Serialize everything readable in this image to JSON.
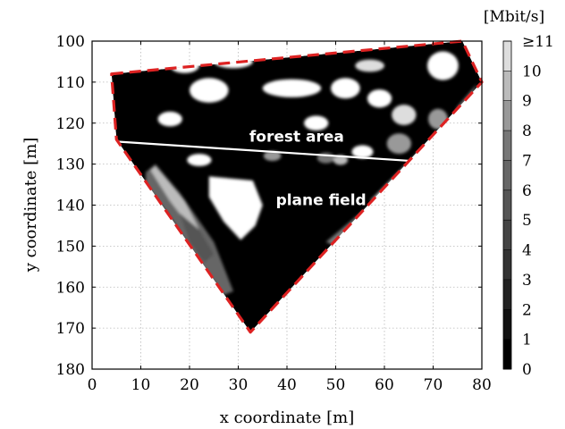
{
  "chart_data": {
    "type": "heatmap",
    "title": "",
    "xlabel": "x coordinate [m]",
    "ylabel": "y coordinate [m]",
    "xlim": [
      0,
      80
    ],
    "ylim": [
      100,
      180
    ],
    "y_inverted": true,
    "x_ticks": [
      0,
      10,
      20,
      30,
      40,
      50,
      60,
      70,
      80
    ],
    "y_ticks": [
      100,
      110,
      120,
      130,
      140,
      150,
      160,
      170,
      180
    ],
    "grid": true,
    "colorbar": {
      "unit_label": "[Mbit/s]",
      "min": 0,
      "max": 11,
      "tick_labels": [
        "0",
        "1",
        "2",
        "3",
        "4",
        "5",
        "6",
        "7",
        "8",
        "9",
        "10",
        "≥11"
      ],
      "colors": [
        "#000000",
        "#111111",
        "#222222",
        "#333333",
        "#444444",
        "#555555",
        "#666666",
        "#777777",
        "#999999",
        "#bbbbbb",
        "#dddddd",
        "#ffffff"
      ]
    },
    "measurement_area_outline": {
      "style": "dashed",
      "color": "#dd2222",
      "vertices": [
        [
          4,
          108
        ],
        [
          76,
          100
        ],
        [
          80,
          110
        ],
        [
          32.5,
          171
        ],
        [
          5,
          124
        ]
      ]
    },
    "regions": [
      {
        "label": "forest area",
        "x": 42,
        "y": 124.5
      },
      {
        "label": "plane field",
        "x": 47,
        "y": 140
      }
    ],
    "boundary_line": {
      "color": "#ffffff",
      "points": [
        [
          5,
          124.5
        ],
        [
          69,
          129.5
        ]
      ]
    },
    "high_rate_blobs": [
      {
        "x": 24,
        "y": 112,
        "rx": 4,
        "ry": 3,
        "value": 11
      },
      {
        "x": 16,
        "y": 119,
        "rx": 2.5,
        "ry": 1.8,
        "value": 11
      },
      {
        "x": 41,
        "y": 111.5,
        "rx": 6,
        "ry": 2.2,
        "value": 11
      },
      {
        "x": 52,
        "y": 111.5,
        "rx": 3,
        "ry": 2.5,
        "value": 11
      },
      {
        "x": 72,
        "y": 106,
        "rx": 3.2,
        "ry": 3.5,
        "value": 11
      },
      {
        "x": 59,
        "y": 114,
        "rx": 2.5,
        "ry": 2.2,
        "value": 11
      },
      {
        "x": 29,
        "y": 105,
        "rx": 4,
        "ry": 1.6,
        "value": 11
      },
      {
        "x": 57,
        "y": 106,
        "rx": 3,
        "ry": 1.5,
        "value": 10
      },
      {
        "x": 19,
        "y": 106,
        "rx": 3,
        "ry": 1.8,
        "value": 11
      },
      {
        "x": 46,
        "y": 120,
        "rx": 2.5,
        "ry": 1.8,
        "value": 11
      },
      {
        "x": 55.5,
        "y": 127,
        "rx": 2.2,
        "ry": 1.6,
        "value": 11
      },
      {
        "x": 64,
        "y": 118,
        "rx": 2.5,
        "ry": 2.5,
        "value": 10
      },
      {
        "x": 63,
        "y": 125,
        "rx": 2.5,
        "ry": 2.5,
        "value": 8
      },
      {
        "x": 71,
        "y": 119,
        "rx": 2,
        "ry": 2.5,
        "value": 8
      },
      {
        "x": 22,
        "y": 129,
        "rx": 2.5,
        "ry": 1.5,
        "value": 11
      },
      {
        "x": 48,
        "y": 128.5,
        "rx": 1.8,
        "ry": 1.3,
        "value": 7
      },
      {
        "x": 51,
        "y": 129,
        "rx": 1.5,
        "ry": 1.2,
        "value": 9
      },
      {
        "x": 37,
        "y": 128,
        "rx": 1.8,
        "ry": 1.2,
        "value": 8
      }
    ],
    "high_rate_patches": [
      {
        "value": 11,
        "vertices": [
          [
            24,
            133
          ],
          [
            33,
            134
          ],
          [
            35,
            140
          ],
          [
            33.5,
            145
          ],
          [
            30.5,
            148.5
          ],
          [
            27,
            144
          ],
          [
            24,
            138
          ]
        ]
      },
      {
        "value": 6,
        "vertices": [
          [
            11,
            132
          ],
          [
            13,
            130
          ],
          [
            18,
            137
          ],
          [
            25,
            149
          ],
          [
            29,
            161
          ],
          [
            27,
            162
          ],
          [
            22,
            154
          ],
          [
            16,
            143
          ],
          [
            11,
            135
          ]
        ]
      },
      {
        "value": 9,
        "vertices": [
          [
            12,
            131.5
          ],
          [
            13,
            130.5
          ],
          [
            19,
            139
          ],
          [
            22,
            146
          ],
          [
            20.5,
            146
          ],
          [
            16,
            139
          ]
        ]
      },
      {
        "value": 5,
        "vertices": [
          [
            18,
            142
          ],
          [
            22,
            146
          ],
          [
            25,
            152
          ],
          [
            23,
            154
          ],
          [
            20,
            149
          ]
        ]
      },
      {
        "value": 7,
        "vertices": [
          [
            72,
            124
          ],
          [
            75,
            116
          ],
          [
            79,
            110.5
          ],
          [
            76,
            119
          ],
          [
            70,
            130
          ],
          [
            64,
            138
          ],
          [
            56,
            145
          ],
          [
            50,
            150
          ],
          [
            48,
            149
          ],
          [
            56,
            141
          ],
          [
            63,
            134
          ],
          [
            69,
            128
          ]
        ]
      },
      {
        "value": 9,
        "vertices": [
          [
            67,
            127
          ],
          [
            70,
            125
          ],
          [
            65,
            134
          ],
          [
            59,
            139
          ],
          [
            57,
            139
          ]
        ]
      }
    ]
  }
}
